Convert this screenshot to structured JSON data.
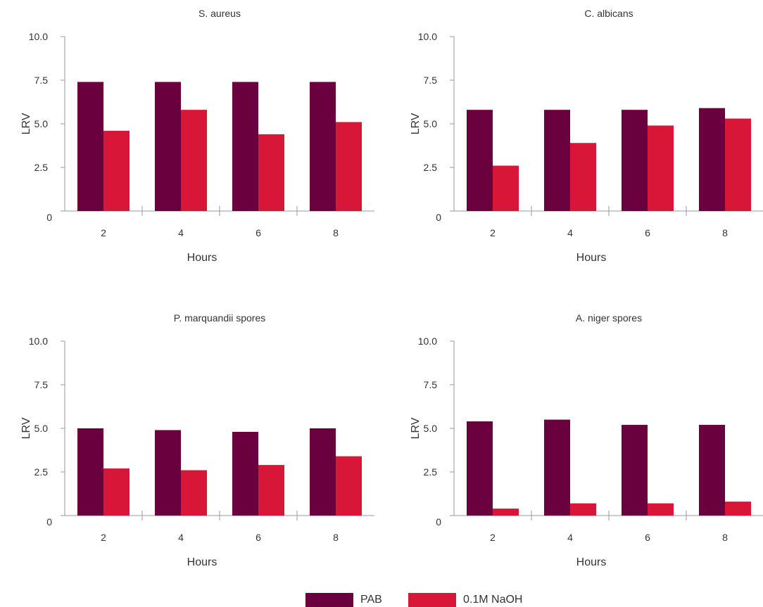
{
  "colors": {
    "PAB": "#6b003f",
    "NaOH": "#d71638",
    "axis": "#9a9a9a",
    "text": "#333333"
  },
  "legend": {
    "pab_label": "PAB",
    "naoh_label": "0.1M NaOH"
  },
  "chart_data": [
    {
      "type": "bar",
      "title": "S. aureus",
      "xlabel": "Hours",
      "ylabel": "LRV",
      "ylim": [
        0,
        10
      ],
      "yticks": [
        "0",
        "2.5",
        "5.0",
        "7.5",
        "10.0"
      ],
      "categories": [
        "2",
        "4",
        "6",
        "8"
      ],
      "series": [
        {
          "name": "PAB",
          "values": [
            7.4,
            7.4,
            7.4,
            7.4
          ]
        },
        {
          "name": "0.1M NaOH",
          "values": [
            4.6,
            5.8,
            4.4,
            5.1
          ]
        }
      ]
    },
    {
      "type": "bar",
      "title": "C. albicans",
      "xlabel": "Hours",
      "ylabel": "LRV",
      "ylim": [
        0,
        10
      ],
      "yticks": [
        "0",
        "2.5",
        "5.0",
        "7.5",
        "10.0"
      ],
      "categories": [
        "2",
        "4",
        "6",
        "8"
      ],
      "series": [
        {
          "name": "PAB",
          "values": [
            5.8,
            5.8,
            5.8,
            5.9
          ]
        },
        {
          "name": "0.1M NaOH",
          "values": [
            2.6,
            3.9,
            4.9,
            5.3
          ]
        }
      ]
    },
    {
      "type": "bar",
      "title": "P. marquandii spores",
      "xlabel": "Hours",
      "ylabel": "LRV",
      "ylim": [
        0,
        10
      ],
      "yticks": [
        "0",
        "2.5",
        "5.0",
        "7.5",
        "10.0"
      ],
      "categories": [
        "2",
        "4",
        "6",
        "8"
      ],
      "series": [
        {
          "name": "PAB",
          "values": [
            5.0,
            4.9,
            4.8,
            5.0
          ]
        },
        {
          "name": "0.1M NaOH",
          "values": [
            2.7,
            2.6,
            2.9,
            3.4
          ]
        }
      ]
    },
    {
      "type": "bar",
      "title": "A. niger spores",
      "xlabel": "Hours",
      "ylabel": "LRV",
      "ylim": [
        0,
        10
      ],
      "yticks": [
        "0",
        "2.5",
        "5.0",
        "7.5",
        "10.0"
      ],
      "categories": [
        "2",
        "4",
        "6",
        "8"
      ],
      "series": [
        {
          "name": "PAB",
          "values": [
            5.4,
            5.5,
            5.2,
            5.2
          ]
        },
        {
          "name": "0.1M NaOH",
          "values": [
            0.4,
            0.7,
            0.7,
            0.8
          ]
        }
      ]
    }
  ]
}
